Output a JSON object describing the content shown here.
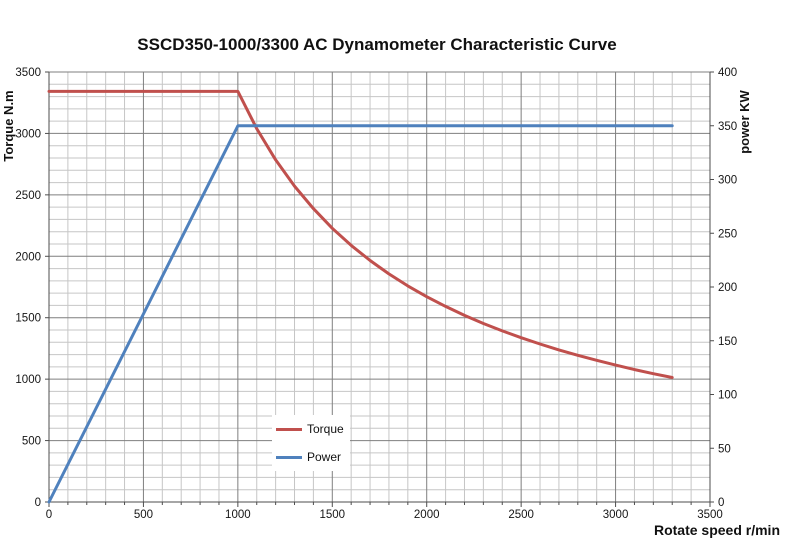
{
  "title": "SSCD350-1000/3300 AC Dynamometer Characteristic Curve",
  "chart_data": {
    "type": "line",
    "title": "SSCD350-1000/3300 AC Dynamometer Characteristic Curve",
    "x_axis": {
      "label": "Rotate speed r/min",
      "min": 0,
      "max": 3500,
      "major_step": 500,
      "minor_step": 100,
      "tick_labels": [
        "0",
        "500",
        "1000",
        "1500",
        "2000",
        "2500",
        "3000",
        "3500"
      ]
    },
    "y_axis_left": {
      "label": "Torque N.m",
      "min": 0,
      "max": 3500,
      "major_step": 500,
      "minor_step": 100,
      "tick_labels": [
        "0",
        "500",
        "1000",
        "1500",
        "2000",
        "2500",
        "3000",
        "3500"
      ]
    },
    "y_axis_right": {
      "label": "power KW",
      "min": 0,
      "max": 400,
      "major_step": 50,
      "tick_labels": [
        "0",
        "50",
        "100",
        "150",
        "200",
        "250",
        "300",
        "350",
        "400"
      ]
    },
    "grid": {
      "show_minor": true,
      "major_color": "#7f7f7f",
      "minor_color": "#c6c6c6",
      "axis_color": "#4d4d4d"
    },
    "legend": {
      "position": "inside-bottom-center",
      "items": [
        {
          "label": "Torque",
          "color": "#C0504D"
        },
        {
          "label": "Power",
          "color": "#4F81BD"
        }
      ]
    },
    "series": [
      {
        "name": "Torque",
        "axis": "left",
        "color": "#C0504D",
        "points": [
          [
            0,
            3342
          ],
          [
            1000,
            3342
          ],
          [
            1100,
            3039
          ],
          [
            1200,
            2785
          ],
          [
            1300,
            2571
          ],
          [
            1400,
            2388
          ],
          [
            1500,
            2228
          ],
          [
            1600,
            2089
          ],
          [
            1700,
            1966
          ],
          [
            1800,
            1857
          ],
          [
            1900,
            1759
          ],
          [
            2000,
            1671
          ],
          [
            2100,
            1592
          ],
          [
            2200,
            1519
          ],
          [
            2300,
            1453
          ],
          [
            2400,
            1393
          ],
          [
            2500,
            1337
          ],
          [
            2600,
            1286
          ],
          [
            2700,
            1238
          ],
          [
            2800,
            1194
          ],
          [
            2900,
            1153
          ],
          [
            3000,
            1114
          ],
          [
            3100,
            1078
          ],
          [
            3200,
            1044
          ],
          [
            3300,
            1013
          ]
        ]
      },
      {
        "name": "Power",
        "axis": "right",
        "color": "#4F81BD",
        "points": [
          [
            0,
            0
          ],
          [
            1000,
            350
          ],
          [
            3300,
            350
          ]
        ]
      }
    ]
  }
}
